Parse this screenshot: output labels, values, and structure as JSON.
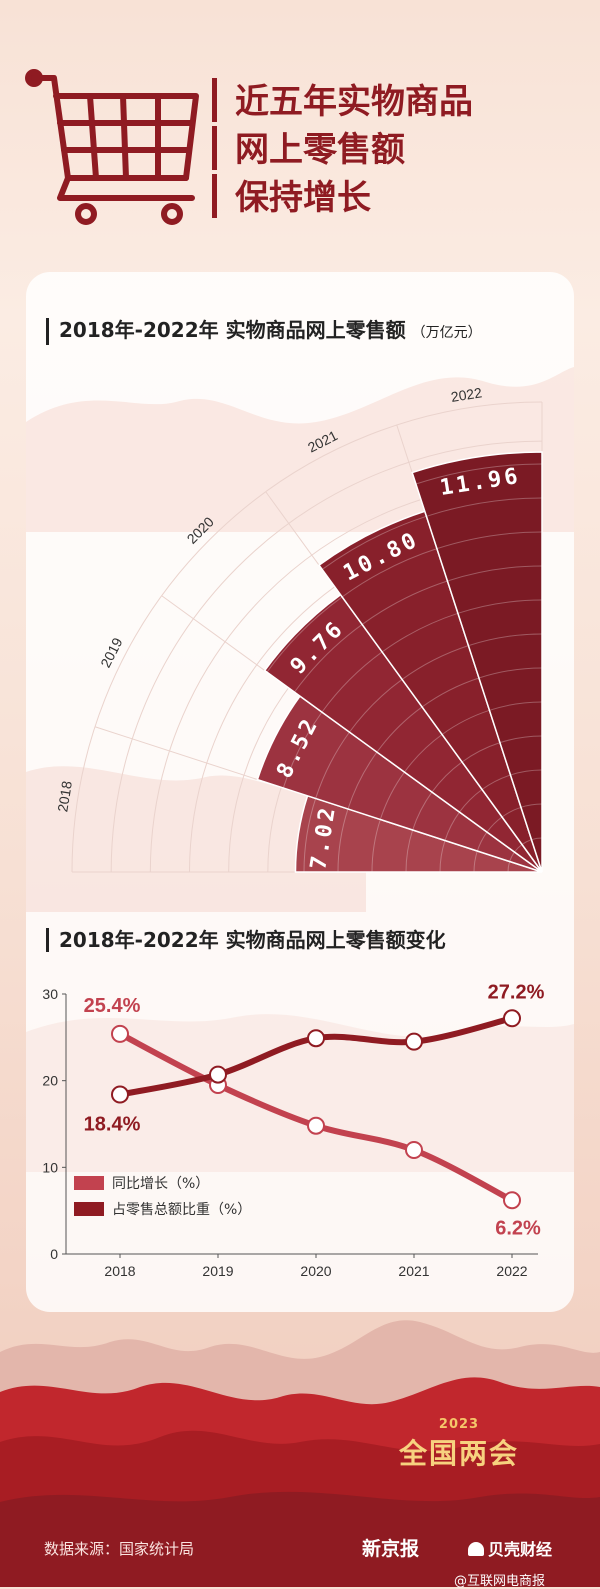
{
  "header": {
    "title_lines": [
      "近五年实物商品",
      "网上零售额",
      "保持增长"
    ]
  },
  "colors": {
    "primary": "#8f1b22",
    "light": "#c2424f",
    "accent": "#f7d27f"
  },
  "icons": {
    "cart": "shopping-cart-icon"
  },
  "chart_data": [
    {
      "type": "bar",
      "title": "2018年-2022年 实物商品网上零售额",
      "unit_label": "（万亿元）",
      "categories": [
        "2018",
        "2019",
        "2020",
        "2021",
        "2022"
      ],
      "values": [
        7.02,
        8.52,
        9.76,
        10.8,
        11.96
      ],
      "value_labels": [
        "7.02",
        "8.52",
        "9.76",
        "10.80",
        "11.96"
      ]
    },
    {
      "type": "line",
      "title": "2018年-2022年 实物商品网上零售额变化",
      "x": [
        "2018",
        "2019",
        "2020",
        "2021",
        "2022"
      ],
      "yticks": [
        "0",
        "10",
        "20",
        "30"
      ],
      "ylim": [
        0,
        30
      ],
      "legend_position": "lower-left",
      "series": [
        {
          "name": "同比增长（%）",
          "color": "#c2424f",
          "values": [
            25.4,
            19.5,
            14.8,
            12.0,
            6.2
          ]
        },
        {
          "name": "占零售总额比重（%）",
          "color": "#8f1b22",
          "values": [
            18.4,
            20.7,
            24.9,
            24.5,
            27.2
          ]
        }
      ],
      "annotations": [
        "25.4%",
        "18.4%",
        "27.2%",
        "6.2%"
      ]
    }
  ],
  "footer": {
    "source": "数据来源：国家统计局",
    "badge_year": "2023",
    "badge_name": "全国两会",
    "publisher1": "新京报",
    "publisher2": "贝壳财经",
    "watermark": "@互联网电商报"
  }
}
